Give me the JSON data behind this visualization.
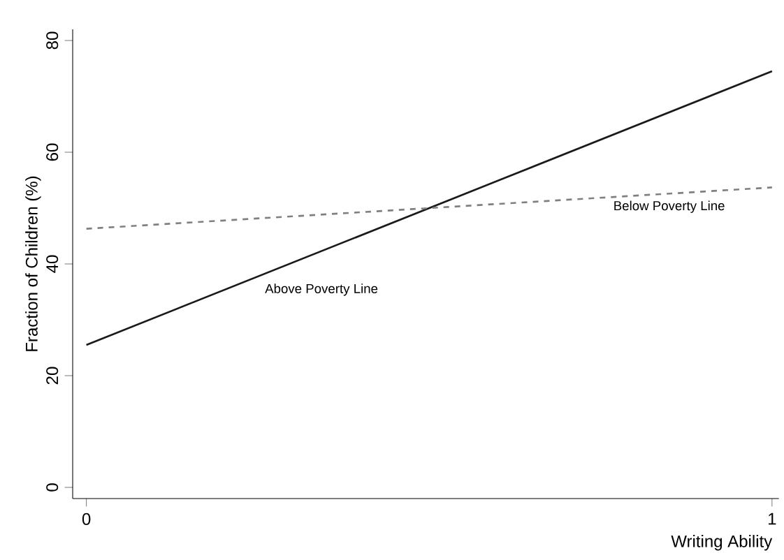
{
  "chart_data": {
    "type": "line",
    "xlabel": "Writing Ability",
    "ylabel": "Fraction of Children (%)",
    "x": [
      0,
      1
    ],
    "series": [
      {
        "name": "Above Poverty Line",
        "color": "#1a1a1a",
        "values": [
          25.5,
          74.5
        ],
        "line_style": "solid"
      },
      {
        "name": "Below Poverty Line",
        "color": "#808080",
        "values": [
          46.3,
          53.7
        ],
        "line_style": "dashed"
      }
    ],
    "xlim": [
      -0.02,
      1.01
    ],
    "ylim": [
      -2,
      82
    ],
    "xticks": [
      0,
      1
    ],
    "yticks": [
      0,
      20,
      40,
      60,
      80
    ],
    "grid": false,
    "marker": "none"
  }
}
